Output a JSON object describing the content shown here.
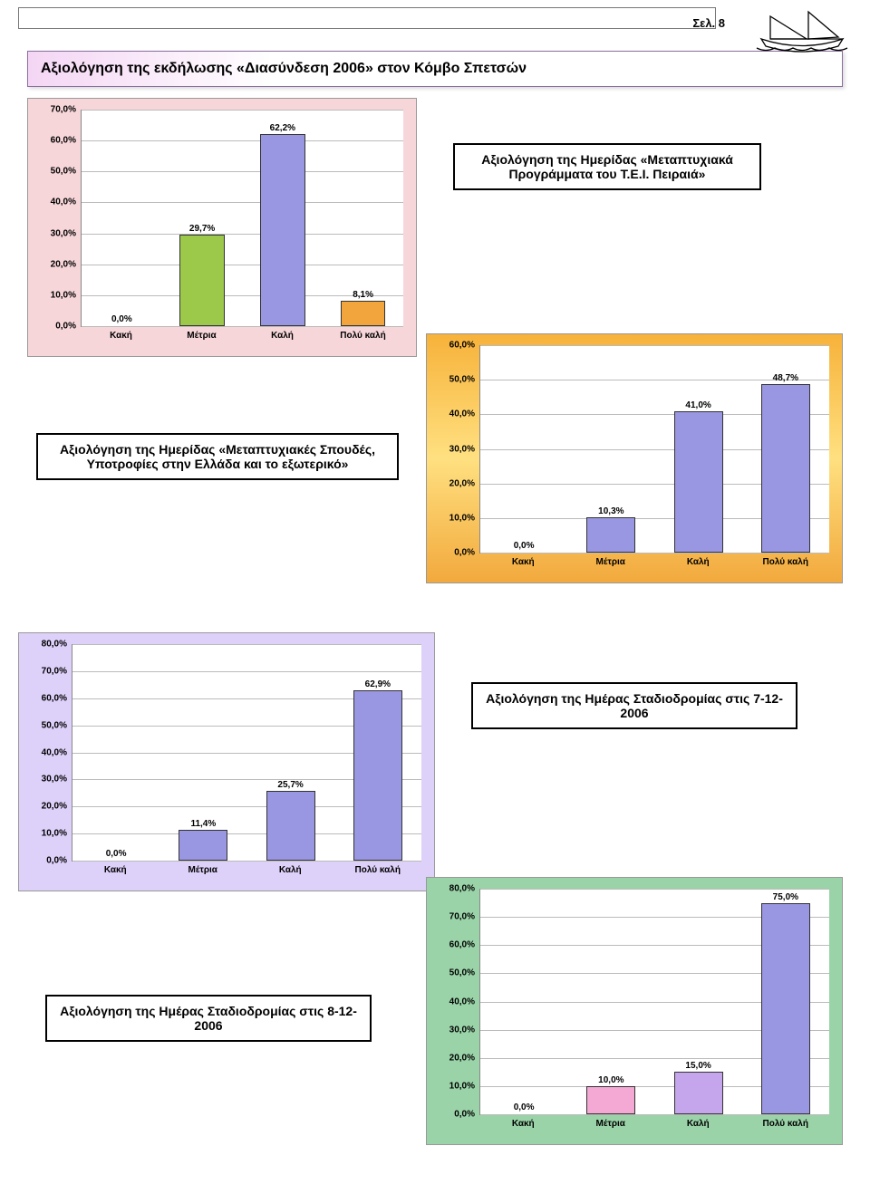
{
  "page_label": "Σελ. 8",
  "section_title": "Αξιολόγηση της εκδήλωσης «Διασύνδεση 2006» στον Κόμβο Σπετσών",
  "categories": [
    "Κακή",
    "Μέτρια",
    "Καλή",
    "Πολύ καλή"
  ],
  "chart1": {
    "title": "Αξιολόγηση της Ημερίδας «Μεταπτυχιακά Προγράμματα του Τ.Ε.Ι. Πειραιά»",
    "ymax": 70,
    "ystep": 10,
    "values": [
      0.0,
      29.7,
      62.2,
      8.1
    ],
    "labels": [
      "0,0%",
      "29,7%",
      "62,2%",
      "8,1%"
    ],
    "colors": [
      "#ffffff",
      "#9cc94a",
      "#9a97e2",
      "#f2a53c"
    ],
    "yticks": [
      "0,0%",
      "10,0%",
      "20,0%",
      "30,0%",
      "40,0%",
      "50,0%",
      "60,0%",
      "70,0%"
    ]
  },
  "chart2": {
    "title": "Αξιολόγηση της Ημερίδας «Μεταπτυχιακές Σπουδές, Υποτροφίες στην Ελλάδα και το εξωτερικό»",
    "ymax": 60,
    "ystep": 10,
    "values": [
      0.0,
      10.3,
      41.0,
      48.7
    ],
    "labels": [
      "0,0%",
      "10,3%",
      "41,0%",
      "48,7%"
    ],
    "colors": [
      "#ffffff",
      "#9a97e2",
      "#9a97e2",
      "#9a97e2"
    ],
    "yticks": [
      "0,0%",
      "10,0%",
      "20,0%",
      "30,0%",
      "40,0%",
      "50,0%",
      "60,0%"
    ]
  },
  "chart3": {
    "title": "Αξιολόγηση της Ημέρας Σταδιοδρομίας στις 7-12-2006",
    "ymax": 80,
    "ystep": 10,
    "values": [
      0.0,
      11.4,
      25.7,
      62.9
    ],
    "labels": [
      "0,0%",
      "11,4%",
      "25,7%",
      "62,9%"
    ],
    "colors": [
      "#ffffff",
      "#9a97e2",
      "#9a97e2",
      "#9a97e2"
    ],
    "yticks": [
      "0,0%",
      "10,0%",
      "20,0%",
      "30,0%",
      "40,0%",
      "50,0%",
      "60,0%",
      "70,0%",
      "80,0%"
    ]
  },
  "chart4": {
    "title": "Αξιολόγηση της Ημέρας Σταδιοδρομίας στις 8-12-2006",
    "ymax": 80,
    "ystep": 10,
    "values": [
      0.0,
      10.0,
      15.0,
      75.0
    ],
    "labels": [
      "0,0%",
      "10,0%",
      "15,0%",
      "75,0%"
    ],
    "colors": [
      "#ffffff",
      "#f4a8d4",
      "#c5a5ec",
      "#9a97e2"
    ],
    "yticks": [
      "0,0%",
      "10,0%",
      "20,0%",
      "30,0%",
      "40,0%",
      "50,0%",
      "60,0%",
      "70,0%",
      "80,0%"
    ]
  },
  "bar_width_pct": 14,
  "bar_positions_pct": [
    12.5,
    37.5,
    62.5,
    87.5
  ]
}
